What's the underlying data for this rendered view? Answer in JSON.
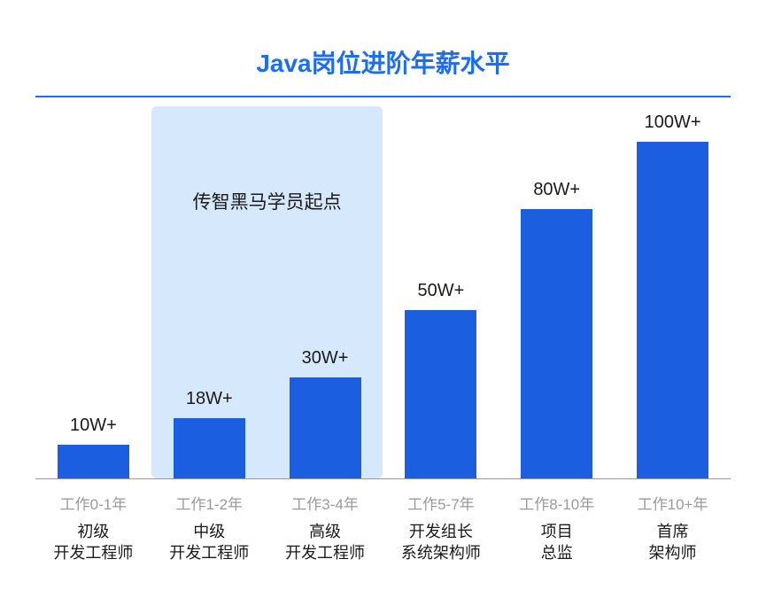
{
  "chart": {
    "type": "bar",
    "title": "Java岗位进阶年薪水平",
    "title_color": "#1b6ef3",
    "title_fontsize": 28,
    "title_underline_color": "#1b6ef3",
    "background_color": "#ffffff",
    "baseline_color": "#999999",
    "bar_width_pct": 62,
    "max_value": 100,
    "value_fontsize": 20,
    "value_color": "#1a1a1a",
    "years_fontsize": 17,
    "years_color": "#9a9a9a",
    "role_fontsize": 18,
    "role_color": "#1a1a1a",
    "highlight": {
      "label": "传智黑马学员起点",
      "label_fontsize": 21,
      "label_color": "#1a1a1a",
      "label_top_pct": 22,
      "background_color": "#d6e8fb",
      "start_index": 1,
      "end_index": 2
    },
    "bars": [
      {
        "value_label": "10W+",
        "value": 10,
        "color": "#1b5fe0",
        "years": "工作0-1年",
        "role": "初级\n开发工程师"
      },
      {
        "value_label": "18W+",
        "value": 18,
        "color": "#1b5fe0",
        "years": "工作1-2年",
        "role": "中级\n开发工程师"
      },
      {
        "value_label": "30W+",
        "value": 30,
        "color": "#1b5fe0",
        "years": "工作3-4年",
        "role": "高级\n开发工程师"
      },
      {
        "value_label": "50W+",
        "value": 50,
        "color": "#1b5fe0",
        "years": "工作5-7年",
        "role": "开发组长\n系统架构师"
      },
      {
        "value_label": "80W+",
        "value": 80,
        "color": "#1b5fe0",
        "years": "工作8-10年",
        "role": "项目\n总监"
      },
      {
        "value_label": "100W+",
        "value": 100,
        "color": "#1b5fe0",
        "years": "工作10+年",
        "role": "首席\n架构师"
      }
    ]
  }
}
